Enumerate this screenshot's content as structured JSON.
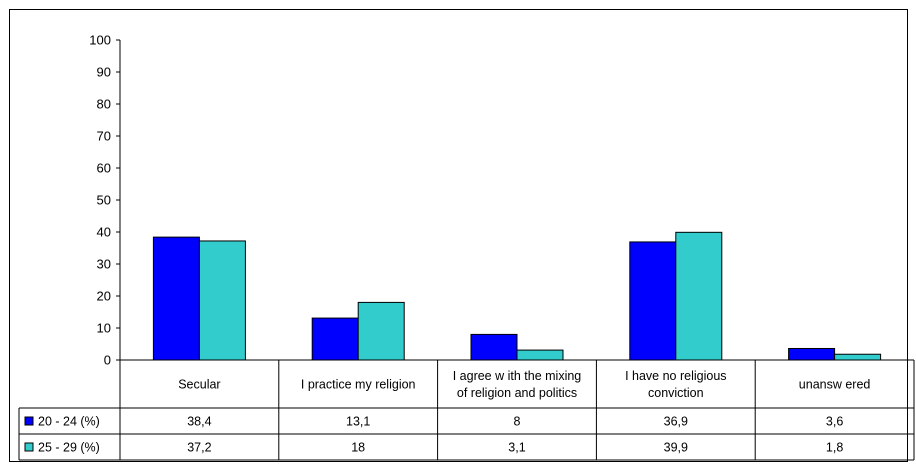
{
  "chart_data": {
    "type": "bar",
    "categories": [
      [
        "Secular"
      ],
      [
        "I practice my religion"
      ],
      [
        "I agree w ith the mixing",
        "of religion and politics"
      ],
      [
        "I have no religious",
        "conviction"
      ],
      [
        "unansw ered"
      ]
    ],
    "series": [
      {
        "name": "20 - 24 (%)",
        "color": "#0000ff",
        "values": [
          38.4,
          13.1,
          8,
          36.9,
          3.6
        ],
        "labels": [
          "38,4",
          "13,1",
          "8",
          "36,9",
          "3,6"
        ]
      },
      {
        "name": "25 - 29 (%)",
        "color": "#33cccc",
        "values": [
          37.2,
          18,
          3.1,
          39.9,
          1.8
        ],
        "labels": [
          "37,2",
          "18",
          "3,1",
          "39,9",
          "1,8"
        ]
      }
    ],
    "ylim": [
      0,
      100
    ],
    "yticks": [
      0,
      10,
      20,
      30,
      40,
      50,
      60,
      70,
      80,
      90,
      100
    ],
    "grid": false,
    "legend": "data-table",
    "title": "",
    "xlabel": "",
    "ylabel": ""
  }
}
